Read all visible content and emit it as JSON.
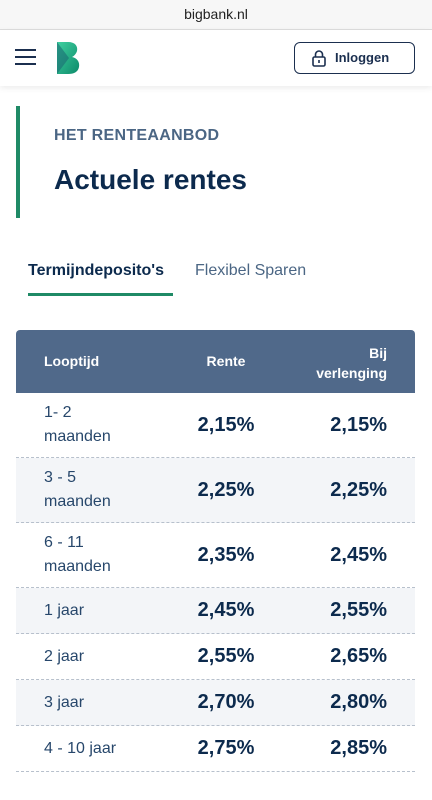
{
  "browser": {
    "url": "bigbank.nl"
  },
  "header": {
    "login_button": "Inloggen"
  },
  "section": {
    "eyebrow": "HET RENTEAANBOD",
    "title": "Actuele rentes"
  },
  "tabs": [
    "Termijndeposito's",
    "Flexibel Sparen"
  ],
  "table": {
    "headers": [
      "Looptijd",
      "Rente",
      "Bij verlenging"
    ],
    "rows": [
      [
        "1- 2 maanden",
        "2,15%",
        "2,15%"
      ],
      [
        "3 - 5 maanden",
        "2,25%",
        "2,25%"
      ],
      [
        "6 - 11 maanden",
        "2,35%",
        "2,45%"
      ],
      [
        "1 jaar",
        "2,45%",
        "2,55%"
      ],
      [
        "2 jaar",
        "2,55%",
        "2,65%"
      ],
      [
        "3 jaar",
        "2,70%",
        "2,80%"
      ],
      [
        "4 - 10 jaar",
        "2,75%",
        "2,85%"
      ]
    ]
  }
}
